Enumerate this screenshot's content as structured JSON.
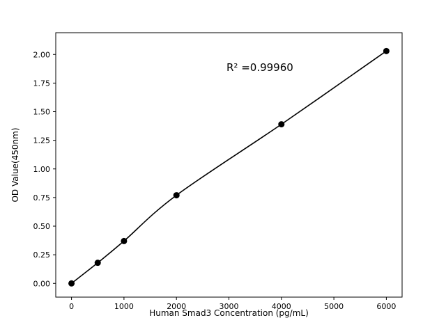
{
  "chart_data": {
    "type": "scatter",
    "title": "",
    "xlabel": "Human Smad3 Concentration (pg/mL)",
    "ylabel": "OD Value(450nm)",
    "annotation": "R² =0.99960",
    "x": [
      0,
      500,
      1000,
      2000,
      4000,
      6000
    ],
    "y": [
      0.0,
      0.18,
      0.37,
      0.77,
      1.39,
      2.03
    ],
    "fit_line": true,
    "xlim": [
      -300,
      6300
    ],
    "ylim": [
      -0.12,
      2.19
    ],
    "xticks": [
      0,
      1000,
      2000,
      3000,
      4000,
      5000,
      6000
    ],
    "xtick_labels": [
      "0",
      "1000",
      "2000",
      "3000",
      "4000",
      "5000",
      "6000"
    ],
    "yticks": [
      0.0,
      0.25,
      0.5,
      0.75,
      1.0,
      1.25,
      1.5,
      1.75,
      2.0
    ],
    "ytick_labels": [
      "0.00",
      "0.25",
      "0.50",
      "0.75",
      "1.00",
      "1.25",
      "1.50",
      "1.75",
      "2.00"
    ],
    "grid": false,
    "legend": null,
    "marker_color": "#000000",
    "line_color": "#000000",
    "axis_color": "#000000",
    "background": "#ffffff"
  }
}
